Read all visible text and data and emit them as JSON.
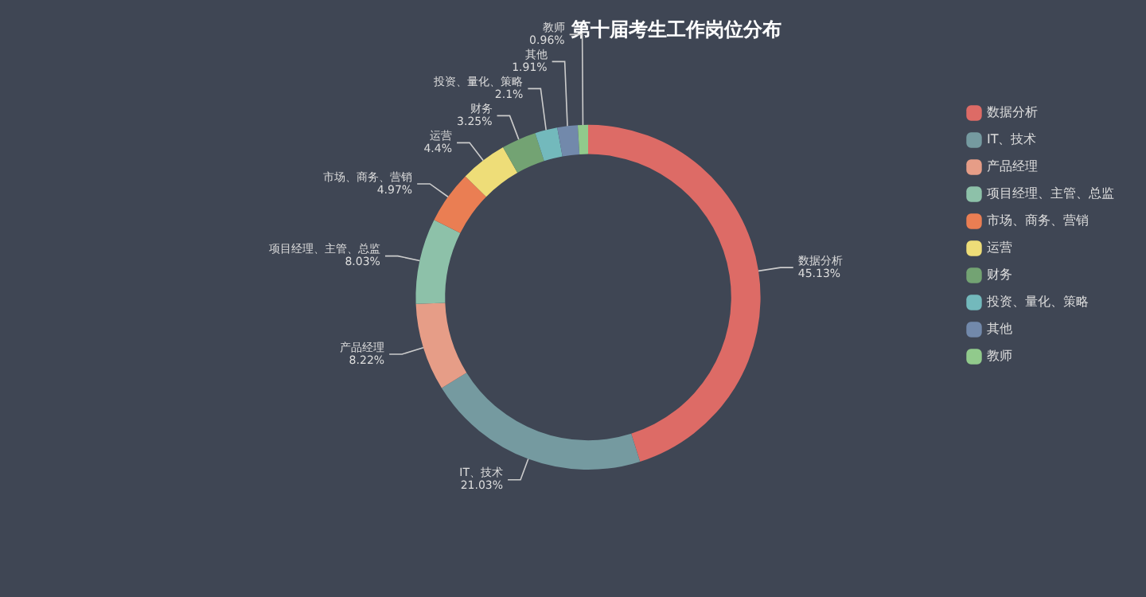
{
  "chart_data": {
    "type": "donut",
    "title": "第十届考生工作岗位分布",
    "categories": [
      "数据分析",
      "IT、技术",
      "产品经理",
      "项目经理、主管、总监",
      "市场、商务、营销",
      "运营",
      "财务",
      "投资、量化、策略",
      "其他",
      "教师"
    ],
    "values": [
      45.13,
      21.03,
      8.22,
      8.03,
      4.97,
      4.4,
      3.25,
      2.1,
      1.91,
      0.96
    ],
    "value_labels": [
      "45.13%",
      "21.03%",
      "8.22%",
      "8.03%",
      "4.97%",
      "4.4%",
      "3.25%",
      "2.1%",
      "1.91%",
      "0.96%"
    ],
    "colors": [
      "#dd6b66",
      "#759aa0",
      "#e69d87",
      "#8dc1a9",
      "#ea7e53",
      "#eedd78",
      "#73a373",
      "#73b9bc",
      "#7289ab",
      "#91ca8c"
    ],
    "legend": "right"
  }
}
